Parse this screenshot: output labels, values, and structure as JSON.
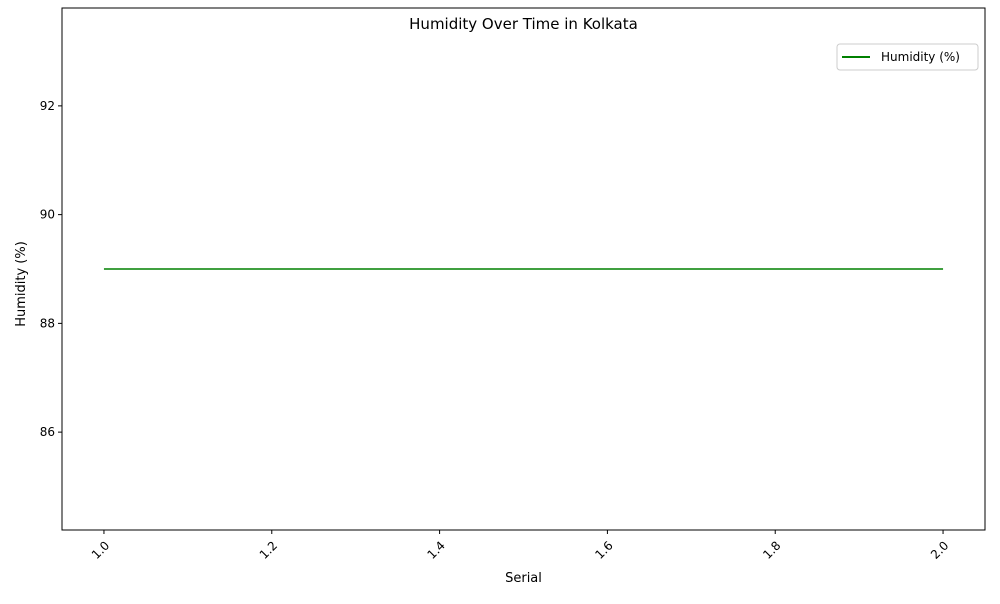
{
  "chart_data": {
    "type": "line",
    "title": "Humidity Over Time in Kolkata",
    "xlabel": "Serial",
    "ylabel": "Humidity (%)",
    "x": [
      1.0,
      2.0
    ],
    "series": [
      {
        "name": "Humidity (%)",
        "values": [
          89,
          89
        ],
        "color": "#008000"
      }
    ],
    "xlim": [
      0.95,
      2.05
    ],
    "ylim": [
      84.2,
      93.8
    ],
    "xticks": [
      1.0,
      1.2,
      1.4,
      1.6,
      1.8,
      2.0
    ],
    "xtick_labels": [
      "1.0",
      "1.2",
      "1.4",
      "1.6",
      "1.8",
      "2.0"
    ],
    "xtick_rotation": 45,
    "yticks": [
      86,
      88,
      90,
      92
    ],
    "ytick_labels": [
      "86",
      "88",
      "90",
      "92"
    ],
    "grid": false,
    "legend_position": "top-right"
  }
}
